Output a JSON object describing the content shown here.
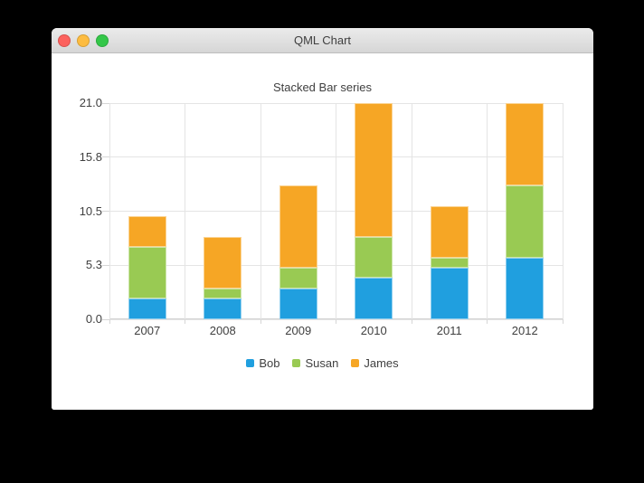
{
  "window": {
    "title": "QML Chart",
    "traffic_lights": {
      "close_color": "#fc615d",
      "minimize_color": "#fdbc40",
      "zoom_color": "#34c749"
    }
  },
  "chart_data": {
    "type": "bar",
    "stacked": true,
    "title": "Stacked Bar series",
    "categories": [
      "2007",
      "2008",
      "2009",
      "2010",
      "2011",
      "2012"
    ],
    "series": [
      {
        "name": "Bob",
        "color": "#209fdf",
        "values": [
          2,
          2,
          3,
          4,
          5,
          6
        ]
      },
      {
        "name": "Susan",
        "color": "#99ca53",
        "values": [
          5,
          1,
          2,
          4,
          1,
          7
        ]
      },
      {
        "name": "James",
        "color": "#f6a625",
        "values": [
          3,
          5,
          8,
          13,
          5,
          8
        ]
      }
    ],
    "xlabel": "",
    "ylabel": "",
    "ylim": [
      0,
      21
    ],
    "ytick_values": [
      0,
      5.25,
      10.5,
      15.75,
      21
    ],
    "ytick_labels": [
      "0.0",
      "5.3",
      "10.5",
      "15.8",
      "21.0"
    ],
    "grid": true,
    "legend_position": "bottom"
  }
}
